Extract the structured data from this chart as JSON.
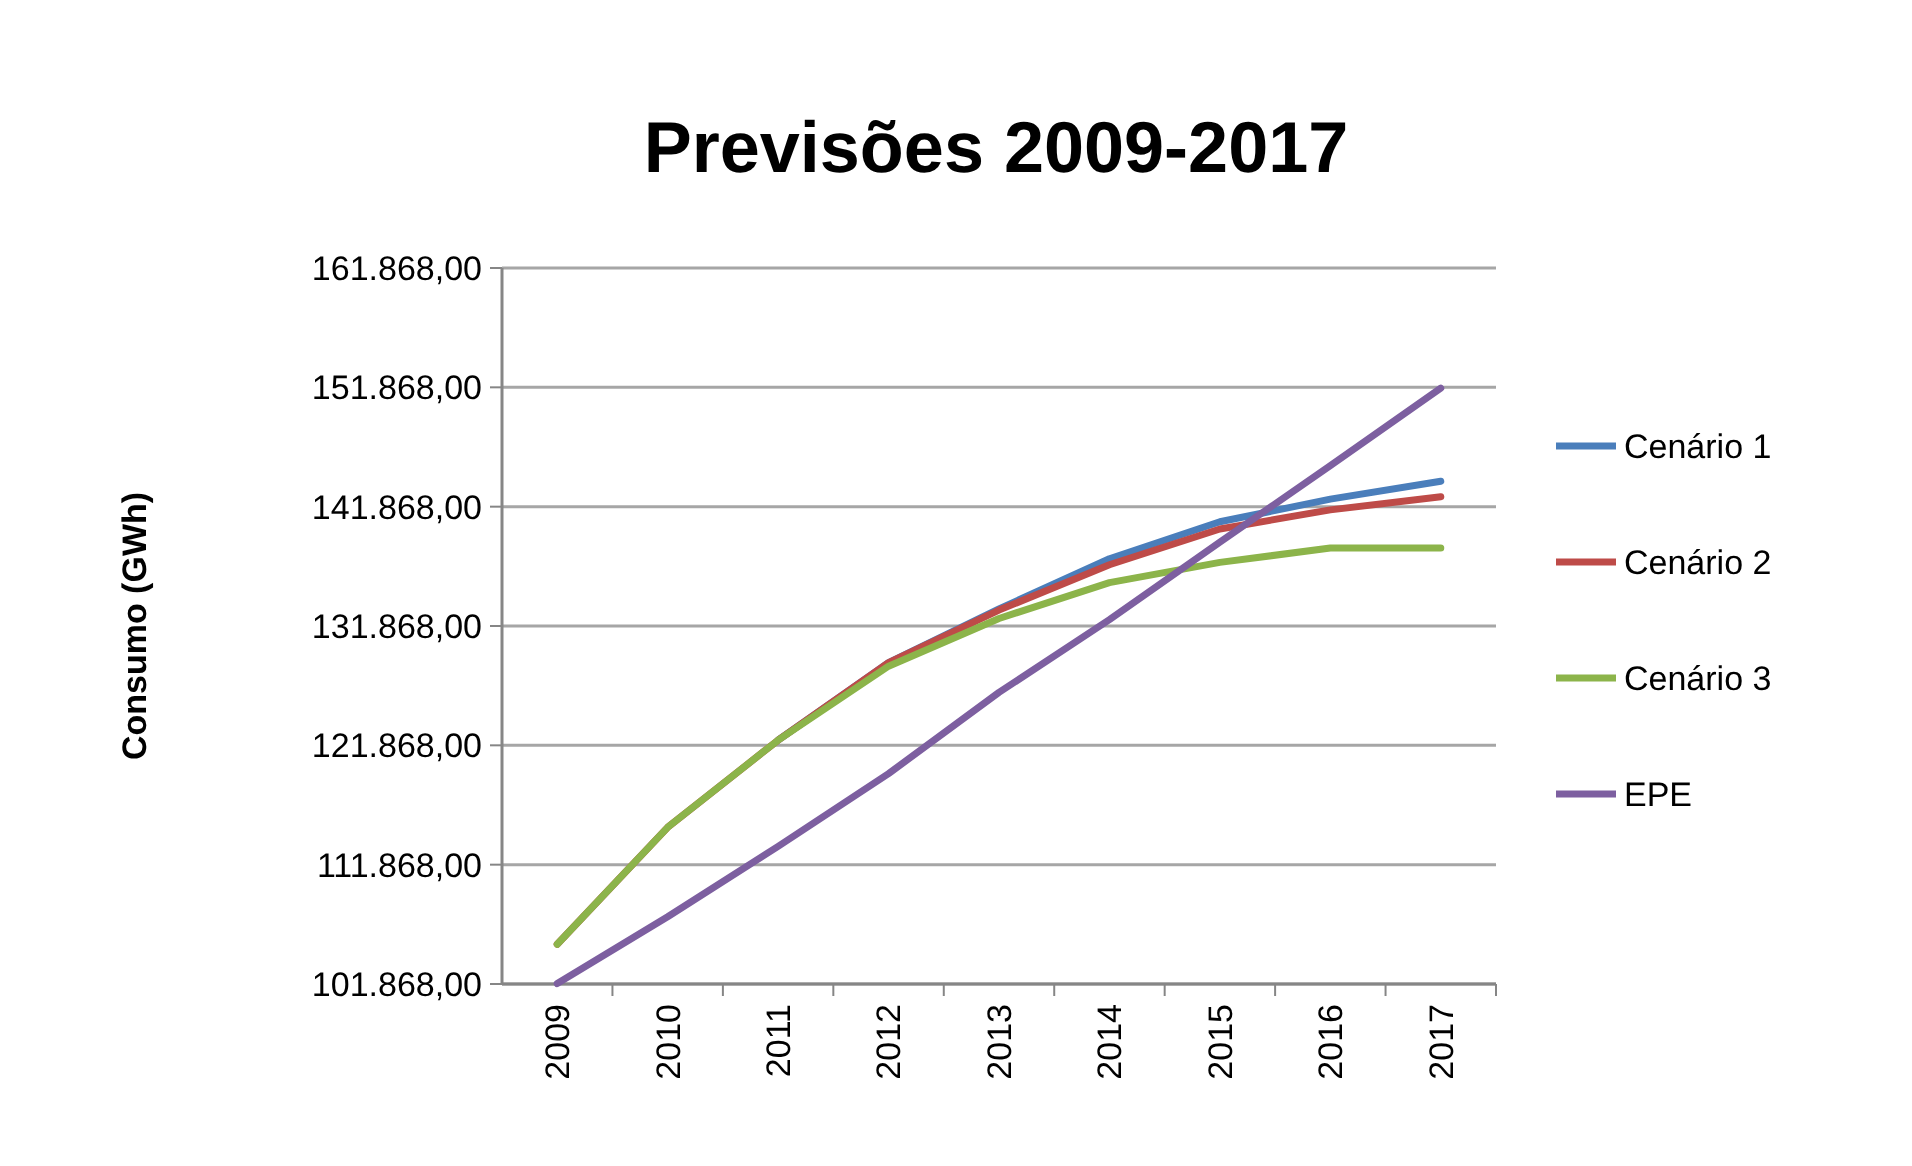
{
  "chart_data": {
    "type": "line",
    "title": "Previsões 2009-2017",
    "ylabel": "Consumo (GWh)",
    "categories": [
      "2009",
      "2010",
      "2011",
      "2012",
      "2013",
      "2014",
      "2015",
      "2016",
      "2017"
    ],
    "series": [
      {
        "name": "Cenário 1",
        "color": "#4a7ebb",
        "values": [
          null,
          null,
          122300,
          128800,
          133300,
          137500,
          140600,
          142500,
          144000
        ]
      },
      {
        "name": "Cenário 2",
        "color": "#be4b48",
        "values": [
          105200,
          115000,
          122300,
          128800,
          133200,
          137000,
          140000,
          141600,
          142700
        ]
      },
      {
        "name": "Cenário 3",
        "color": "#8cb44a",
        "values": [
          105200,
          115000,
          122300,
          128500,
          132500,
          135500,
          137200,
          138400,
          138400
        ]
      },
      {
        "name": "EPE",
        "color": "#7d5fa0",
        "values": [
          101900,
          107500,
          113400,
          119500,
          126300,
          132400,
          138900,
          145300,
          151800
        ]
      }
    ],
    "ylim": [
      101868,
      161868
    ],
    "yticks": [
      {
        "value": 101868,
        "label": "101.868,00"
      },
      {
        "value": 111868,
        "label": "111.868,00"
      },
      {
        "value": 121868,
        "label": "121.868,00"
      },
      {
        "value": 131868,
        "label": "131.868,00"
      },
      {
        "value": 141868,
        "label": "141.868,00"
      },
      {
        "value": 151868,
        "label": "151.868,00"
      },
      {
        "value": 161868,
        "label": "161.868,00"
      }
    ],
    "grid": "y",
    "legend": "right",
    "marker": "none",
    "line_style": "solid"
  }
}
